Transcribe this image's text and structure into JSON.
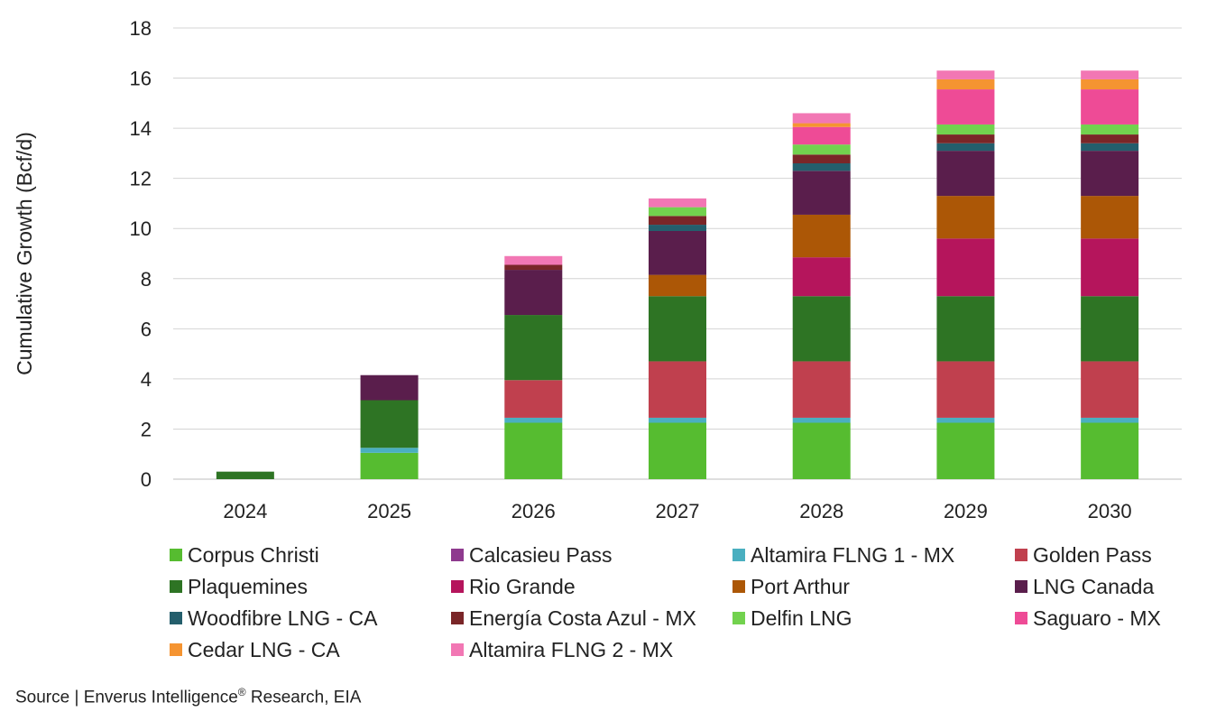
{
  "chart_data": {
    "type": "bar",
    "stacked": true,
    "ylabel": "Cumulative Growth (Bcf/d)",
    "ylim": [
      0,
      18
    ],
    "yticks": [
      0,
      2,
      4,
      6,
      8,
      10,
      12,
      14,
      16,
      18
    ],
    "grid": true,
    "legend_position": "bottom",
    "categories": [
      "2024",
      "2025",
      "2026",
      "2027",
      "2028",
      "2029",
      "2030"
    ],
    "series": [
      {
        "name": "Corpus Christi",
        "color": "#56BC30",
        "values": [
          0,
          1.05,
          2.25,
          2.25,
          2.25,
          2.25,
          2.25
        ]
      },
      {
        "name": "Calcasieu Pass",
        "color": "#8E3A8E",
        "values": [
          0,
          0,
          0,
          0,
          0,
          0,
          0
        ]
      },
      {
        "name": "Altamira FLNG 1 - MX",
        "color": "#4AAFC0",
        "values": [
          0,
          0.2,
          0.2,
          0.2,
          0.2,
          0.2,
          0.2
        ]
      },
      {
        "name": "Golden Pass",
        "color": "#C0404E",
        "values": [
          0,
          0,
          1.5,
          2.25,
          2.25,
          2.25,
          2.25
        ]
      },
      {
        "name": "Plaquemines",
        "color": "#2E7424",
        "values": [
          0.3,
          1.9,
          2.6,
          2.6,
          2.6,
          2.6,
          2.6
        ]
      },
      {
        "name": "Rio Grande",
        "color": "#B5155C",
        "values": [
          0,
          0,
          0,
          0,
          1.55,
          2.3,
          2.3
        ]
      },
      {
        "name": "Port Arthur",
        "color": "#AC5706",
        "values": [
          0,
          0,
          0,
          0.85,
          1.7,
          1.7,
          1.7
        ]
      },
      {
        "name": "LNG Canada",
        "color": "#5A1E4C",
        "values": [
          0,
          1.0,
          1.8,
          1.75,
          1.75,
          1.8,
          1.8
        ]
      },
      {
        "name": "Woodfibre LNG - CA",
        "color": "#245E6C",
        "values": [
          0,
          0,
          0,
          0.25,
          0.3,
          0.3,
          0.3
        ]
      },
      {
        "name": "Energía Costa Azul - MX",
        "color": "#7A2628",
        "values": [
          0,
          0,
          0.2,
          0.35,
          0.35,
          0.35,
          0.35
        ]
      },
      {
        "name": "Delfin LNG",
        "color": "#72D24E",
        "values": [
          0,
          0,
          0,
          0.35,
          0.4,
          0.4,
          0.4
        ]
      },
      {
        "name": "Saguaro - MX",
        "color": "#EE4B96",
        "values": [
          0,
          0,
          0,
          0,
          0.7,
          1.4,
          1.4
        ]
      },
      {
        "name": "Cedar LNG - CA",
        "color": "#F59431",
        "values": [
          0,
          0,
          0,
          0,
          0.15,
          0.4,
          0.4
        ]
      },
      {
        "name": "Altamira FLNG 2 - MX",
        "color": "#F277B4",
        "values": [
          0,
          0,
          0.35,
          0.35,
          0.4,
          0.35,
          0.35
        ]
      }
    ]
  },
  "source": {
    "prefix": "Source | Enverus Intelligence",
    "mark": "®",
    "suffix": " Research, EIA"
  }
}
